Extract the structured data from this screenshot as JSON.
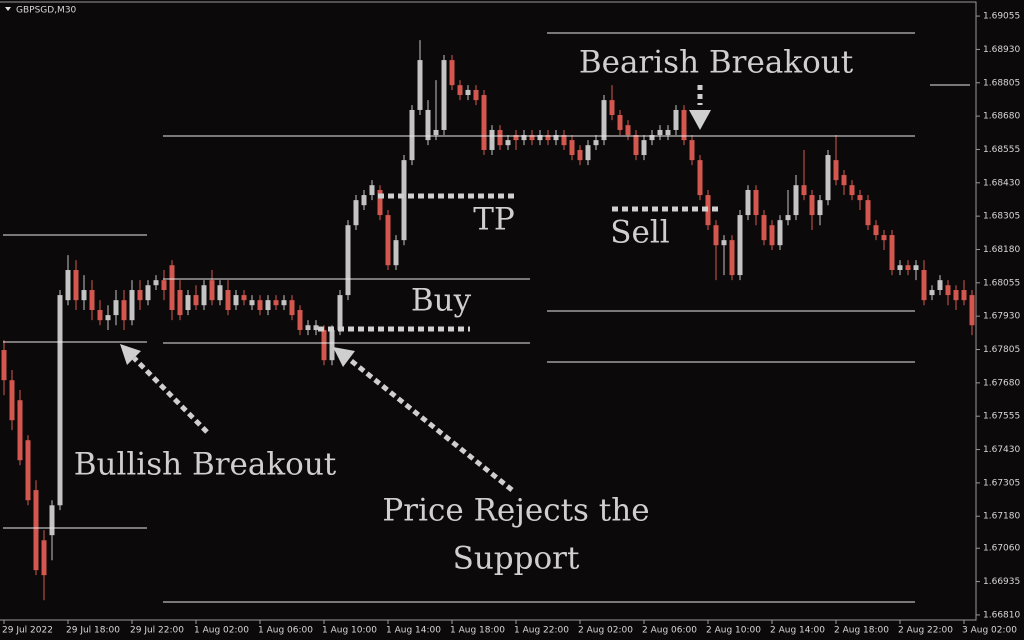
{
  "chart_data": {
    "type": "candlestick",
    "title": "GBPSGD,M30",
    "up_color": "#c4c4c4",
    "down_color": "#d4574f",
    "ylim": [
      1.66791,
      1.69104
    ],
    "yticks": [
      1.69055,
      {
        "value": 1.6893,
        "label": "1.68930"
      },
      1.68805,
      {
        "value": 1.6868,
        "label": "1.68680"
      },
      1.68555,
      {
        "value": 1.6843,
        "label": "1.68430"
      },
      1.68305,
      {
        "value": 1.6818,
        "label": "1.68180"
      },
      1.68055,
      {
        "value": 1.6793,
        "label": "1.67930"
      },
      1.67805,
      {
        "value": 1.6768,
        "label": "1.67680"
      },
      1.67555,
      {
        "value": 1.6743,
        "label": "1.67430"
      },
      1.67305,
      {
        "value": 1.6718,
        "label": "1.67180"
      },
      {
        "value": 1.6706,
        "label": "1.67060"
      },
      1.66935,
      {
        "value": 1.6681,
        "label": "1.66810"
      }
    ],
    "categories": [
      "29 Jul 2022",
      null,
      null,
      null,
      null,
      null,
      null,
      null,
      "29 Jul 18:00",
      null,
      null,
      null,
      null,
      null,
      null,
      null,
      "29 Jul 22:00",
      null,
      null,
      null,
      null,
      null,
      null,
      null,
      "1 Aug 02:00",
      null,
      null,
      null,
      null,
      null,
      null,
      null,
      "1 Aug 06:00",
      null,
      null,
      null,
      null,
      null,
      null,
      null,
      "1 Aug 10:00",
      null,
      null,
      null,
      null,
      null,
      null,
      null,
      "1 Aug 14:00",
      null,
      null,
      null,
      null,
      null,
      null,
      null,
      "1 Aug 18:00",
      null,
      null,
      null,
      null,
      null,
      null,
      null,
      "1 Aug 22:00",
      null,
      null,
      null,
      null,
      null,
      null,
      null,
      "2 Aug 02:00",
      null,
      null,
      null,
      null,
      null,
      null,
      null,
      "2 Aug 06:00",
      null,
      null,
      null,
      null,
      null,
      null,
      null,
      "2 Aug 10:00",
      null,
      null,
      null,
      null,
      null,
      null,
      null,
      "2 Aug 14:00",
      null,
      null,
      null,
      null,
      null,
      null,
      null,
      "2 Aug 18:00",
      null,
      null,
      null,
      null,
      null,
      null,
      null,
      "2 Aug 22:00",
      null,
      null,
      null,
      null,
      null,
      null,
      null,
      "3 Aug 02:00",
      null
    ],
    "candles": [
      [
        1.67803,
        1.6784,
        1.67634,
        1.6769
      ],
      [
        1.6769,
        1.67728,
        1.67503,
        1.6754
      ],
      [
        1.67615,
        1.67653,
        1.67371,
        1.6739
      ],
      [
        1.67465,
        1.67484,
        1.67221,
        1.6724
      ],
      [
        1.67278,
        1.67315,
        1.66959,
        1.66978
      ],
      [
        1.6709,
        1.67128,
        1.66865,
        1.66959
      ],
      [
        1.67109,
        1.6724,
        1.67015,
        1.67221
      ],
      [
        1.67221,
        1.68028,
        1.67203,
        1.68009
      ],
      [
        1.6799,
        1.68159,
        1.67971,
        1.68103
      ],
      [
        1.68103,
        1.6814,
        1.67953,
        1.6799
      ],
      [
        1.6799,
        1.68084,
        1.67953,
        1.68028
      ],
      [
        1.68028,
        1.68065,
        1.67915,
        1.67953
      ],
      [
        1.67953,
        1.6799,
        1.67896,
        1.67915
      ],
      [
        1.67915,
        1.67971,
        1.67878,
        1.67934
      ],
      [
        1.67934,
        1.68028,
        1.67896,
        1.6799
      ],
      [
        1.6799,
        1.68028,
        1.67878,
        1.67915
      ],
      [
        1.67915,
        1.68065,
        1.67896,
        1.68028
      ],
      [
        1.68028,
        1.68065,
        1.67953,
        1.6799
      ],
      [
        1.6799,
        1.68065,
        1.67971,
        1.68046
      ],
      [
        1.68046,
        1.68084,
        1.68028,
        1.68065
      ],
      [
        1.68065,
        1.68103,
        1.6799,
        1.68028
      ],
      [
        1.68121,
        1.6814,
        1.67915,
        1.67953
      ],
      [
        1.68028,
        1.68065,
        1.67915,
        1.67934
      ],
      [
        1.67953,
        1.68028,
        1.67934,
        1.68009
      ],
      [
        1.68009,
        1.68046,
        1.67953,
        1.67971
      ],
      [
        1.67971,
        1.68065,
        1.67953,
        1.68046
      ],
      [
        1.68065,
        1.68103,
        1.67971,
        1.6799
      ],
      [
        1.6799,
        1.68065,
        1.67971,
        1.68046
      ],
      [
        1.68028,
        1.68065,
        1.67934,
        1.67953
      ],
      [
        1.67971,
        1.68028,
        1.67953,
        1.68009
      ],
      [
        1.68009,
        1.68028,
        1.67971,
        1.6799
      ],
      [
        1.67971,
        1.68009,
        1.67953,
        1.6799
      ],
      [
        1.6799,
        1.68009,
        1.67934,
        1.67953
      ],
      [
        1.67953,
        1.68009,
        1.67934,
        1.6799
      ],
      [
        1.6799,
        1.68009,
        1.67953,
        1.67971
      ],
      [
        1.67971,
        1.68009,
        1.67953,
        1.6799
      ],
      [
        1.6799,
        1.68009,
        1.67915,
        1.67934
      ],
      [
        1.67953,
        1.67971,
        1.67859,
        1.67878
      ],
      [
        1.67878,
        1.67915,
        1.67859,
        1.67896
      ],
      [
        1.67878,
        1.67915,
        1.67859,
        1.67896
      ],
      [
        1.67878,
        1.67896,
        1.67746,
        1.67765
      ],
      [
        1.67765,
        1.67896,
        1.67746,
        1.67878
      ],
      [
        1.67878,
        1.68028,
        1.67859,
        1.68009
      ],
      [
        1.68009,
        1.6829,
        1.6799,
        1.68271
      ],
      [
        1.68271,
        1.68384,
        1.68253,
        1.68365
      ],
      [
        1.68346,
        1.68403,
        1.68328,
        1.68384
      ],
      [
        1.68384,
        1.6844,
        1.68365,
        1.68421
      ],
      [
        1.68403,
        1.68421,
        1.6829,
        1.68309
      ],
      [
        1.68309,
        1.68328,
        1.68103,
        1.68121
      ],
      [
        1.68121,
        1.68234,
        1.68103,
        1.68215
      ],
      [
        1.68215,
        1.68534,
        1.68196,
        1.68515
      ],
      [
        1.68515,
        1.68721,
        1.68496,
        1.68703
      ],
      [
        1.68703,
        1.68965,
        1.68684,
        1.6889
      ],
      [
        1.6859,
        1.6874,
        1.68571,
        1.68703
      ],
      [
        1.68609,
        1.68815,
        1.6859,
        1.68628
      ],
      [
        1.68628,
        1.68909,
        1.68609,
        1.6889
      ],
      [
        1.6889,
        1.68909,
        1.68778,
        1.68796
      ],
      [
        1.68796,
        1.68815,
        1.6874,
        1.68759
      ],
      [
        1.68759,
        1.68796,
        1.6874,
        1.68778
      ],
      [
        1.68778,
        1.68796,
        1.68721,
        1.6874
      ],
      [
        1.68759,
        1.68778,
        1.68534,
        1.68553
      ],
      [
        1.68553,
        1.68646,
        1.68534,
        1.68628
      ],
      [
        1.68628,
        1.68646,
        1.68553,
        1.68571
      ],
      [
        1.68571,
        1.68609,
        1.68553,
        1.6859
      ],
      [
        1.68609,
        1.68628,
        1.68553,
        1.6859
      ],
      [
        1.6859,
        1.68628,
        1.68571,
        1.68609
      ],
      [
        1.68609,
        1.68628,
        1.68571,
        1.6859
      ],
      [
        1.6859,
        1.68628,
        1.68571,
        1.68609
      ],
      [
        1.68609,
        1.68628,
        1.68571,
        1.6859
      ],
      [
        1.6859,
        1.68628,
        1.68571,
        1.68609
      ],
      [
        1.68609,
        1.68628,
        1.68553,
        1.68571
      ],
      [
        1.6859,
        1.68609,
        1.68515,
        1.68534
      ],
      [
        1.68553,
        1.68571,
        1.68496,
        1.68515
      ],
      [
        1.68515,
        1.6859,
        1.68496,
        1.68571
      ],
      [
        1.68571,
        1.68609,
        1.68553,
        1.6859
      ],
      [
        1.6859,
        1.68759,
        1.68571,
        1.6874
      ],
      [
        1.6874,
        1.68796,
        1.68665,
        1.68684
      ],
      [
        1.68684,
        1.68703,
        1.68609,
        1.68628
      ],
      [
        1.68646,
        1.68665,
        1.6859,
        1.68609
      ],
      [
        1.68609,
        1.68628,
        1.68515,
        1.68534
      ],
      [
        1.68534,
        1.68609,
        1.68515,
        1.6859
      ],
      [
        1.6859,
        1.68628,
        1.68571,
        1.68609
      ],
      [
        1.68609,
        1.68646,
        1.6859,
        1.68628
      ],
      [
        1.68609,
        1.68646,
        1.6859,
        1.68628
      ],
      [
        1.68628,
        1.68721,
        1.68609,
        1.68703
      ],
      [
        1.68703,
        1.68721,
        1.68571,
        1.6859
      ],
      [
        1.6859,
        1.68609,
        1.68496,
        1.68515
      ],
      [
        1.68515,
        1.68534,
        1.68365,
        1.68384
      ],
      [
        1.68384,
        1.68403,
        1.68253,
        1.68271
      ],
      [
        1.68271,
        1.6829,
        1.68065,
        1.68196
      ],
      [
        1.68196,
        1.68234,
        1.68084,
        1.68215
      ],
      [
        1.68215,
        1.68234,
        1.68065,
        1.68084
      ],
      [
        1.68084,
        1.68328,
        1.68065,
        1.68309
      ],
      [
        1.68309,
        1.68421,
        1.6829,
        1.68403
      ],
      [
        1.68403,
        1.68421,
        1.68271,
        1.68309
      ],
      [
        1.68309,
        1.68328,
        1.68196,
        1.68215
      ],
      [
        1.68271,
        1.6829,
        1.68178,
        1.68196
      ],
      [
        1.68196,
        1.68309,
        1.68178,
        1.6829
      ],
      [
        1.6829,
        1.68403,
        1.68271,
        1.68309
      ],
      [
        1.68309,
        1.68459,
        1.6829,
        1.68421
      ],
      [
        1.68421,
        1.68553,
        1.68365,
        1.68384
      ],
      [
        1.68384,
        1.68403,
        1.68253,
        1.68309
      ],
      [
        1.68309,
        1.68384,
        1.68271,
        1.68365
      ],
      [
        1.68365,
        1.68553,
        1.68346,
        1.68534
      ],
      [
        1.68515,
        1.68609,
        1.68421,
        1.6844
      ],
      [
        1.68459,
        1.68478,
        1.68384,
        1.68421
      ],
      [
        1.68421,
        1.6844,
        1.68365,
        1.68384
      ],
      [
        1.68384,
        1.68403,
        1.68328,
        1.68365
      ],
      [
        1.68365,
        1.68384,
        1.68253,
        1.68271
      ],
      [
        1.68271,
        1.6829,
        1.68215,
        1.68234
      ],
      [
        1.68234,
        1.68253,
        1.68178,
        1.68215
      ],
      [
        1.68234,
        1.68253,
        1.68084,
        1.68103
      ],
      [
        1.68103,
        1.6814,
        1.68084,
        1.68121
      ],
      [
        1.68121,
        1.6814,
        1.68084,
        1.68103
      ],
      [
        1.68103,
        1.6814,
        1.68065,
        1.68121
      ],
      [
        1.68103,
        1.6814,
        1.67971,
        1.6799
      ],
      [
        1.68009,
        1.68046,
        1.6799,
        1.68028
      ],
      [
        1.68028,
        1.68084,
        1.68009,
        1.68065
      ],
      [
        1.68046,
        1.68065,
        1.67971,
        1.68009
      ],
      [
        1.68028,
        1.68046,
        1.67953,
        1.6799
      ],
      [
        1.68028,
        1.68065,
        1.67971,
        1.6799
      ],
      [
        1.68009,
        1.68028,
        1.67859,
        1.67896
      ]
    ],
    "annotations": [
      "Bearish Breakout",
      "TP",
      "Sell",
      "Buy",
      "Bullish Breakout",
      "Price Rejects the",
      "Support"
    ]
  }
}
